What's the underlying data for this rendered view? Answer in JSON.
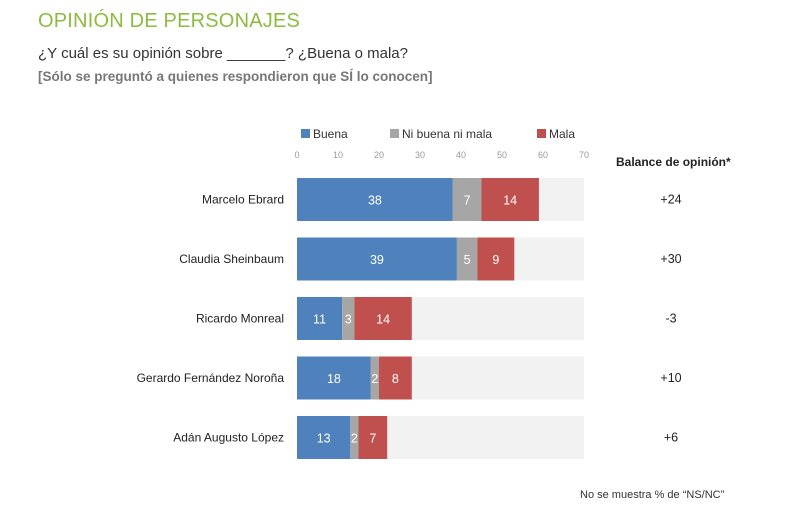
{
  "header": {
    "title": "OPINIÓN DE PERSONAJES",
    "question": "¿Y cuál es su opinión sobre _______? ¿Buena o mala?",
    "note": "[Sólo se preguntó a quienes respondieron que SÍ lo conocen]"
  },
  "balance_header": "Balance de opinión*",
  "footnote": "No se muestra % de “NS/NC”",
  "chart_data": {
    "type": "bar",
    "orientation": "horizontal",
    "stacked": true,
    "xlim": [
      0,
      70
    ],
    "ticks": [
      0,
      10,
      20,
      30,
      40,
      50,
      60,
      70
    ],
    "legend_position": "top",
    "categories": [
      "Marcelo Ebrard",
      "Claudia Sheinbaum",
      "Ricardo Monreal",
      "Gerardo Fernández Noroña",
      "Adán Augusto López"
    ],
    "series": [
      {
        "name": "Buena",
        "color": "#4f81bd",
        "values": [
          38,
          39,
          11,
          18,
          13
        ]
      },
      {
        "name": "Ni buena ni mala",
        "color": "#a6a6a6",
        "values": [
          7,
          5,
          3,
          2,
          2
        ]
      },
      {
        "name": "Mala",
        "color": "#c0504d",
        "values": [
          14,
          9,
          14,
          8,
          7
        ]
      }
    ],
    "balance": [
      "+24",
      "+30",
      "-3",
      "+10",
      "+6"
    ]
  }
}
